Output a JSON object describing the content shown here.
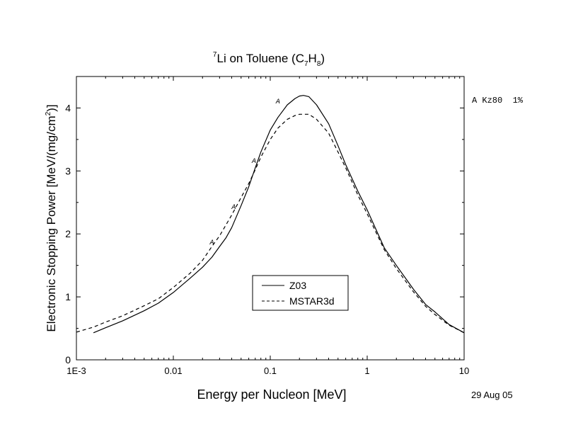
{
  "chart_data": {
    "type": "line",
    "title": {
      "sup": "7",
      "main": "Li on Toluene (C",
      "sub1": "7",
      "mid": "H",
      "sub2": "8",
      "end": ")"
    },
    "xlabel": "Energy per Nucleon [MeV]",
    "ylabel": {
      "main": "Electronic Stopping Power [MeV/(mg/cm",
      "sup": "2",
      "end": ")]"
    },
    "x_scale": "log",
    "xlim": [
      0.001,
      10
    ],
    "ylim": [
      0,
      4.5
    ],
    "x_ticks": [
      {
        "value": 0.001,
        "label": "1E-3"
      },
      {
        "value": 0.01,
        "label": "0.01"
      },
      {
        "value": 0.1,
        "label": "0.1"
      },
      {
        "value": 1,
        "label": "1"
      },
      {
        "value": 10,
        "label": "10"
      }
    ],
    "y_ticks": [
      {
        "value": 0,
        "label": "0"
      },
      {
        "value": 1,
        "label": "1"
      },
      {
        "value": 2,
        "label": "2"
      },
      {
        "value": 3,
        "label": "3"
      },
      {
        "value": 4,
        "label": "4"
      }
    ],
    "grid": false,
    "legend_position": "lower-center",
    "series": [
      {
        "name": "Z03",
        "style": "solid",
        "color": "#000000",
        "points": [
          [
            0.0015,
            0.43
          ],
          [
            0.002,
            0.51
          ],
          [
            0.003,
            0.62
          ],
          [
            0.005,
            0.78
          ],
          [
            0.007,
            0.9
          ],
          [
            0.01,
            1.07
          ],
          [
            0.015,
            1.3
          ],
          [
            0.02,
            1.47
          ],
          [
            0.025,
            1.63
          ],
          [
            0.03,
            1.8
          ],
          [
            0.035,
            1.94
          ],
          [
            0.04,
            2.1
          ],
          [
            0.05,
            2.45
          ],
          [
            0.06,
            2.75
          ],
          [
            0.07,
            3.05
          ],
          [
            0.08,
            3.3
          ],
          [
            0.1,
            3.65
          ],
          [
            0.12,
            3.85
          ],
          [
            0.15,
            4.05
          ],
          [
            0.18,
            4.15
          ],
          [
            0.2,
            4.19
          ],
          [
            0.22,
            4.2
          ],
          [
            0.25,
            4.18
          ],
          [
            0.3,
            4.05
          ],
          [
            0.4,
            3.75
          ],
          [
            0.5,
            3.4
          ],
          [
            0.6,
            3.1
          ],
          [
            0.8,
            2.68
          ],
          [
            1,
            2.38
          ],
          [
            1.5,
            1.78
          ],
          [
            2,
            1.5
          ],
          [
            3,
            1.12
          ],
          [
            4,
            0.88
          ],
          [
            5,
            0.76
          ],
          [
            7,
            0.56
          ],
          [
            10,
            0.43
          ]
        ]
      },
      {
        "name": "MSTAR3d",
        "style": "dashed",
        "color": "#000000",
        "points": [
          [
            0.001,
            0.44
          ],
          [
            0.0015,
            0.52
          ],
          [
            0.002,
            0.6
          ],
          [
            0.003,
            0.7
          ],
          [
            0.005,
            0.86
          ],
          [
            0.007,
            0.97
          ],
          [
            0.01,
            1.15
          ],
          [
            0.015,
            1.38
          ],
          [
            0.02,
            1.58
          ],
          [
            0.025,
            1.8
          ],
          [
            0.03,
            1.97
          ],
          [
            0.04,
            2.3
          ],
          [
            0.05,
            2.58
          ],
          [
            0.06,
            2.8
          ],
          [
            0.07,
            3.02
          ],
          [
            0.08,
            3.22
          ],
          [
            0.1,
            3.5
          ],
          [
            0.12,
            3.68
          ],
          [
            0.15,
            3.82
          ],
          [
            0.18,
            3.88
          ],
          [
            0.2,
            3.9
          ],
          [
            0.25,
            3.9
          ],
          [
            0.3,
            3.82
          ],
          [
            0.4,
            3.6
          ],
          [
            0.5,
            3.3
          ],
          [
            0.6,
            3.05
          ],
          [
            0.8,
            2.62
          ],
          [
            1,
            2.32
          ],
          [
            1.5,
            1.75
          ],
          [
            2,
            1.45
          ],
          [
            3,
            1.08
          ],
          [
            4,
            0.85
          ],
          [
            5,
            0.72
          ],
          [
            7,
            0.55
          ],
          [
            10,
            0.43
          ]
        ]
      }
    ],
    "markers": {
      "symbol": "A",
      "points": [
        [
          0.025,
          1.88
        ],
        [
          0.042,
          2.44
        ],
        [
          0.068,
          3.17
        ],
        [
          0.12,
          4.12
        ]
      ]
    },
    "legend_entries": [
      {
        "label": "Z03",
        "style": "solid"
      },
      {
        "label": "MSTAR3d",
        "style": "dashed"
      }
    ],
    "side_annotation": "A Kz80  1%",
    "date_label": "29 Aug 05"
  }
}
